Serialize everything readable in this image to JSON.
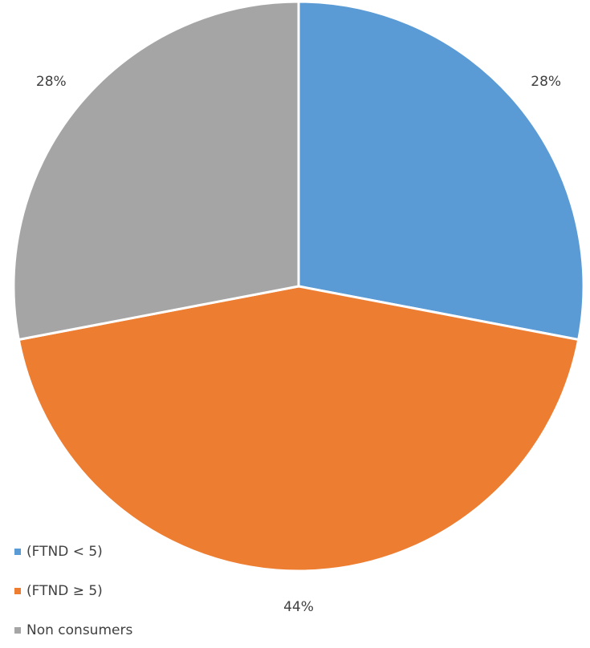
{
  "chart_data": {
    "type": "pie",
    "categories": [
      "(FTND < 5)",
      "(FTND ≥ 5)",
      "Non consumers"
    ],
    "values": [
      28,
      44,
      28
    ],
    "value_labels": [
      "28%",
      "44%",
      "28%"
    ],
    "colors": [
      "#5b9bd5",
      "#ed7d31",
      "#a5a5a5"
    ],
    "legend": "bottom-left"
  }
}
